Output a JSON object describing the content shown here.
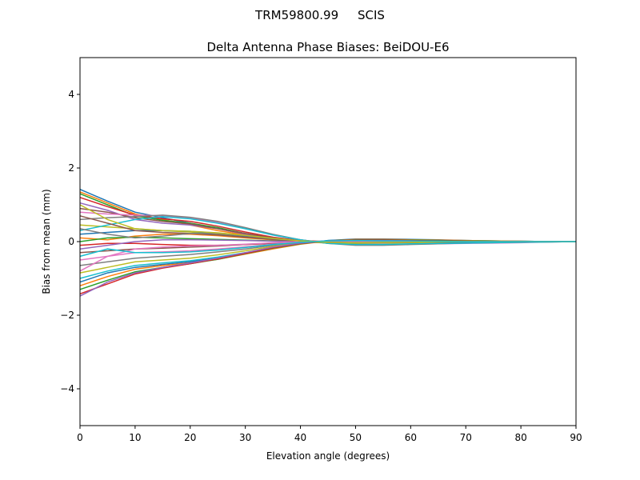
{
  "chart_data": {
    "type": "line",
    "suptitle": "TRM59800.99     SCIS",
    "title": "Delta Antenna Phase Biases: BeiDOU-E6",
    "xlabel": "Elevation angle (degrees)",
    "ylabel": "Bias from mean (mm)",
    "xlim": [
      0,
      90
    ],
    "ylim": [
      -5,
      5
    ],
    "xticks": [
      0,
      10,
      20,
      30,
      40,
      50,
      60,
      70,
      80,
      90
    ],
    "xtick_labels": [
      "0",
      "10",
      "20",
      "30",
      "40",
      "50",
      "60",
      "70",
      "80",
      "90"
    ],
    "yticks": [
      -4,
      -2,
      0,
      2,
      4
    ],
    "ytick_labels": [
      "−4",
      "−2",
      "0",
      "2",
      "4"
    ],
    "grid": false,
    "colors": [
      "#1f77b4",
      "#ff7f0e",
      "#2ca02c",
      "#d62728",
      "#9467bd",
      "#8c564b",
      "#e377c2",
      "#7f7f7f",
      "#bcbd22",
      "#17becf"
    ],
    "x": [
      0,
      5,
      10,
      15,
      20,
      25,
      30,
      35,
      40,
      45,
      50,
      55,
      60,
      65,
      70,
      75,
      80,
      85,
      90
    ],
    "series": [
      [
        1.42,
        1.1,
        0.8,
        0.65,
        0.5,
        0.35,
        0.2,
        0.1,
        0.02,
        -0.02,
        0,
        0.01,
        0.01,
        0,
        0,
        0,
        0,
        0,
        0
      ],
      [
        1.35,
        1.05,
        0.75,
        0.6,
        0.45,
        0.3,
        0.18,
        0.08,
        0,
        -0.03,
        -0.02,
        0,
        0,
        0,
        0,
        0,
        0,
        0,
        0
      ],
      [
        1.3,
        1.0,
        0.7,
        0.58,
        0.5,
        0.38,
        0.22,
        0.1,
        0.02,
        -0.02,
        -0.03,
        -0.02,
        -0.01,
        0,
        0,
        0,
        0,
        0,
        0
      ],
      [
        1.2,
        0.95,
        0.72,
        0.62,
        0.55,
        0.42,
        0.26,
        0.12,
        0.03,
        0,
        -0.02,
        -0.02,
        -0.01,
        0,
        0,
        0,
        0,
        0,
        0
      ],
      [
        1.05,
        0.85,
        0.6,
        0.5,
        0.45,
        0.35,
        0.2,
        0.1,
        0.02,
        -0.03,
        -0.03,
        -0.02,
        -0.02,
        -0.01,
        0,
        0,
        0,
        0,
        0
      ],
      [
        0.9,
        0.8,
        0.65,
        0.55,
        0.48,
        0.35,
        0.22,
        0.1,
        0.02,
        -0.02,
        -0.02,
        -0.01,
        0,
        0,
        0,
        0,
        0,
        0,
        0
      ],
      [
        0.8,
        0.75,
        0.72,
        0.7,
        0.65,
        0.52,
        0.35,
        0.18,
        0.05,
        -0.05,
        -0.08,
        -0.08,
        -0.07,
        -0.06,
        -0.05,
        -0.04,
        -0.03,
        -0.01,
        0
      ],
      [
        0.6,
        0.65,
        0.68,
        0.72,
        0.66,
        0.55,
        0.38,
        0.2,
        0.05,
        -0.05,
        -0.1,
        -0.1,
        -0.08,
        -0.06,
        -0.04,
        -0.03,
        -0.02,
        -0.01,
        0
      ],
      [
        0.45,
        0.4,
        0.35,
        0.3,
        0.26,
        0.2,
        0.12,
        0.05,
        0,
        -0.04,
        -0.05,
        -0.04,
        -0.03,
        -0.02,
        -0.01,
        0,
        0,
        0,
        0
      ],
      [
        0.3,
        0.45,
        0.6,
        0.68,
        0.62,
        0.5,
        0.35,
        0.18,
        0.05,
        -0.05,
        -0.08,
        -0.08,
        -0.06,
        -0.05,
        -0.04,
        -0.03,
        -0.02,
        -0.01,
        0
      ],
      [
        0.2,
        0.25,
        0.3,
        0.3,
        0.28,
        0.22,
        0.15,
        0.08,
        0.02,
        -0.02,
        -0.03,
        -0.03,
        -0.02,
        -0.02,
        -0.01,
        0,
        0,
        0,
        0
      ],
      [
        0.1,
        0.05,
        0.15,
        0.2,
        0.2,
        0.16,
        0.1,
        0.05,
        0.01,
        -0.01,
        -0.02,
        -0.02,
        -0.01,
        0,
        0,
        0,
        0,
        0,
        0
      ],
      [
        0,
        0.1,
        0.12,
        0.1,
        0.08,
        0.06,
        0.04,
        0.02,
        0,
        0,
        -0.01,
        -0.01,
        0,
        0,
        0,
        0,
        0,
        0,
        0
      ],
      [
        -0.1,
        -0.05,
        -0.05,
        -0.08,
        -0.1,
        -0.1,
        -0.08,
        -0.05,
        -0.02,
        0,
        0.01,
        0.01,
        0.01,
        0,
        0,
        0,
        0,
        0,
        0
      ],
      [
        -0.2,
        -0.1,
        0,
        0.05,
        0.05,
        0.04,
        0.03,
        0.01,
        0,
        -0.01,
        -0.01,
        0,
        0,
        0,
        0,
        0,
        0,
        0,
        0
      ],
      [
        -0.3,
        -0.25,
        -0.2,
        -0.18,
        -0.15,
        -0.12,
        -0.08,
        -0.04,
        -0.01,
        0.01,
        0.02,
        0.02,
        0.01,
        0.01,
        0,
        0,
        0,
        0,
        0
      ],
      [
        -0.5,
        -0.4,
        -0.3,
        -0.28,
        -0.25,
        -0.2,
        -0.14,
        -0.07,
        -0.02,
        0.02,
        0.03,
        0.03,
        0.02,
        0.01,
        0.01,
        0,
        0,
        0,
        0
      ],
      [
        -0.65,
        -0.55,
        -0.45,
        -0.4,
        -0.35,
        -0.28,
        -0.2,
        -0.1,
        -0.03,
        0.02,
        0.04,
        0.04,
        0.03,
        0.02,
        0.01,
        0.01,
        0,
        0,
        0
      ],
      [
        -0.85,
        -0.7,
        -0.55,
        -0.5,
        -0.45,
        -0.36,
        -0.25,
        -0.13,
        -0.04,
        0.02,
        0.05,
        0.05,
        0.04,
        0.03,
        0.02,
        0.01,
        0,
        0,
        0
      ],
      [
        -1.0,
        -0.8,
        -0.65,
        -0.58,
        -0.52,
        -0.42,
        -0.3,
        -0.16,
        -0.05,
        0.03,
        0.06,
        0.06,
        0.05,
        0.04,
        0.03,
        0.02,
        0.01,
        0,
        0
      ],
      [
        -1.1,
        -0.85,
        -0.7,
        -0.62,
        -0.55,
        -0.45,
        -0.32,
        -0.18,
        -0.06,
        0.03,
        0.07,
        0.07,
        0.06,
        0.05,
        0.03,
        0.02,
        0.01,
        0,
        0
      ],
      [
        -1.2,
        -0.95,
        -0.75,
        -0.65,
        -0.58,
        -0.48,
        -0.34,
        -0.2,
        -0.07,
        0.02,
        0.06,
        0.06,
        0.05,
        0.04,
        0.03,
        0.02,
        0.01,
        0,
        0
      ],
      [
        -1.3,
        -1.05,
        -0.82,
        -0.7,
        -0.6,
        -0.48,
        -0.33,
        -0.18,
        -0.06,
        0.02,
        0.05,
        0.05,
        0.04,
        0.03,
        0.02,
        0.01,
        0,
        0,
        0
      ],
      [
        -1.42,
        -1.15,
        -0.88,
        -0.72,
        -0.6,
        -0.47,
        -0.32,
        -0.17,
        -0.05,
        0.02,
        0.04,
        0.04,
        0.03,
        0.02,
        0.01,
        0,
        0,
        0,
        0
      ],
      [
        -1.48,
        -1.1,
        -0.85,
        -0.7,
        -0.58,
        -0.45,
        -0.3,
        -0.15,
        -0.04,
        0.02,
        0.03,
        0.03,
        0.02,
        0.01,
        0,
        0,
        0,
        0,
        0
      ],
      [
        0.7,
        0.5,
        0.3,
        0.25,
        0.22,
        0.18,
        0.12,
        0.06,
        0.01,
        -0.02,
        -0.03,
        -0.03,
        -0.02,
        -0.01,
        0,
        0,
        0,
        0,
        0
      ],
      [
        -0.8,
        -0.4,
        -0.2,
        -0.15,
        -0.12,
        -0.1,
        -0.07,
        -0.03,
        0,
        0.01,
        0.01,
        0.01,
        0,
        0,
        0,
        0,
        0,
        0,
        0
      ],
      [
        0.35,
        0.2,
        0.1,
        0.15,
        0.22,
        0.22,
        0.16,
        0.08,
        0.02,
        -0.02,
        -0.03,
        -0.03,
        -0.02,
        -0.01,
        0,
        0,
        0,
        0,
        0
      ],
      [
        1.0,
        0.6,
        0.35,
        0.3,
        0.28,
        0.24,
        0.17,
        0.09,
        0.02,
        -0.02,
        -0.03,
        -0.02,
        -0.02,
        -0.01,
        0,
        0,
        0,
        0,
        0
      ],
      [
        -0.4,
        -0.2,
        -0.3,
        -0.3,
        -0.28,
        -0.23,
        -0.16,
        -0.08,
        -0.02,
        0.02,
        0.03,
        0.02,
        0.02,
        0.01,
        0,
        0,
        0,
        0,
        0
      ]
    ]
  }
}
